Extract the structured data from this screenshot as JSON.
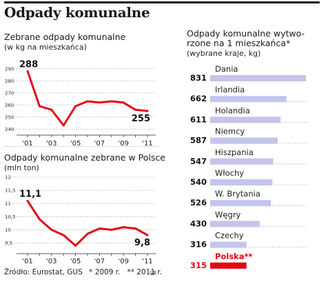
{
  "title": "Odpady komunalne",
  "footer": {
    "source": "Źródło: Eurostat, GUS",
    "notes": "* 2009 r.   ** 2011 r.",
    "credit": "LR"
  },
  "chart_data": [
    {
      "type": "line",
      "title": "Zebrane odpady komunalne",
      "unit": "(w kg na mieszkańca)",
      "x": [
        "'01",
        "'02",
        "'03",
        "'04",
        "'05",
        "'06",
        "'07",
        "'08",
        "'09",
        "'10",
        "'11"
      ],
      "xticks": [
        "'01",
        "'03",
        "'05",
        "'07",
        "'09",
        "'11"
      ],
      "values": [
        288,
        259,
        256,
        243,
        259,
        263,
        262,
        263,
        262,
        256,
        255
      ],
      "ylim": [
        235,
        295
      ],
      "yticks": [
        240,
        250,
        260,
        270,
        280,
        290
      ],
      "labels": {
        "first": "288",
        "last": "255"
      },
      "color": "#e30613"
    },
    {
      "type": "line",
      "title": "Odpady komunalne zebrane w Polsce",
      "unit": "(mln ton)",
      "x": [
        "'01",
        "'02",
        "'03",
        "'04",
        "'05",
        "'06",
        "'07",
        "'08",
        "'09",
        "'10",
        "'11"
      ],
      "xticks": [
        "'01",
        "'03",
        "'05",
        "'07",
        "'09",
        "'11"
      ],
      "values": [
        11.1,
        10.4,
        10.0,
        9.8,
        9.4,
        9.85,
        10.05,
        10.0,
        10.1,
        10.05,
        9.8
      ],
      "ylim": [
        9.2,
        12.0
      ],
      "yticks": [
        9.5,
        10.0,
        10.5,
        11.0,
        11.5,
        12.0
      ],
      "labels": {
        "first": "11,1",
        "last": "9,8"
      },
      "color": "#e30613"
    },
    {
      "type": "bar",
      "title": "Odpady komunalne wytworzone na 1 mieszkańca*",
      "title_lines": [
        "Odpady komunalne wytwo-",
        "rzone na 1 mieszkańca*"
      ],
      "unit": "(wybrane kraje, kg)",
      "categories": [
        "Dania",
        "Irlandia",
        "Holandia",
        "Niemcy",
        "Hiszpania",
        "Włochy",
        "W. Brytania",
        "Węgry",
        "Czechy",
        "Polska**"
      ],
      "values": [
        831,
        662,
        611,
        587,
        547,
        540,
        526,
        430,
        316,
        315
      ],
      "highlight": "Polska**",
      "colors": {
        "bar": "#c4c4ec",
        "highlight": "#e30613"
      }
    }
  ]
}
